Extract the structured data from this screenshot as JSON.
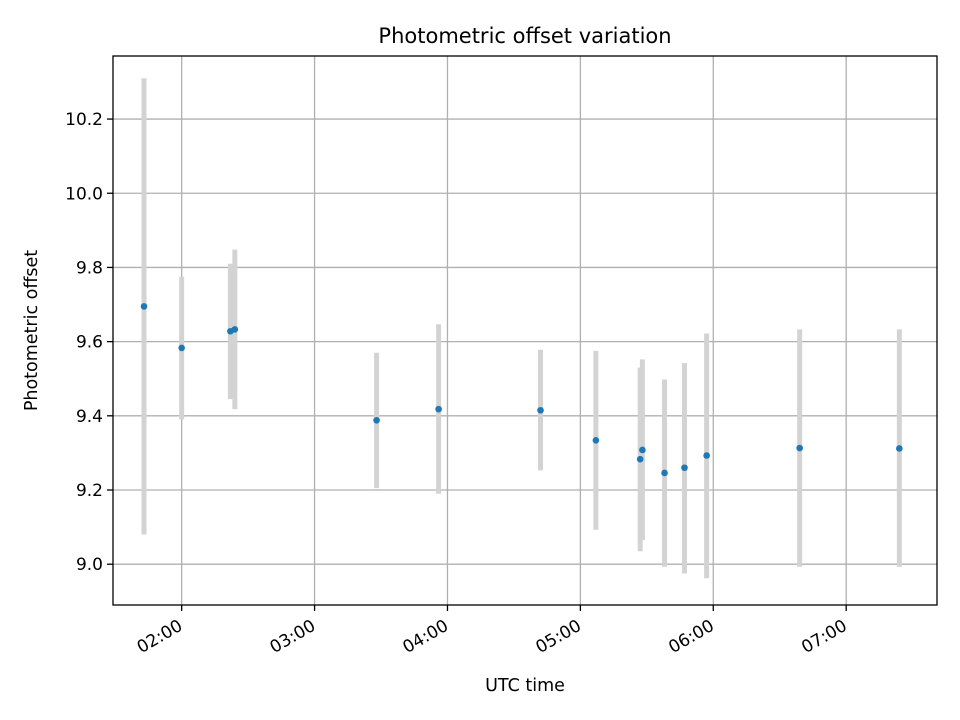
{
  "chart_data": {
    "type": "scatter",
    "title": "Photometric offset variation",
    "xlabel": "UTC time",
    "ylabel": "Photometric offset",
    "xlim": [
      "01:29",
      "07:41"
    ],
    "ylim": [
      8.89,
      10.37
    ],
    "grid": true,
    "x_ticks": [
      "02:00",
      "03:00",
      "04:00",
      "05:00",
      "06:00",
      "07:00"
    ],
    "y_ticks": [
      9.0,
      9.2,
      9.4,
      9.6,
      9.8,
      10.0,
      10.2
    ],
    "y_tick_labels": [
      "9.0",
      "9.2",
      "9.4",
      "9.6",
      "9.8",
      "10.0",
      "10.2"
    ],
    "series": [
      {
        "marker_color": "#1f77b4",
        "errorbar_color": "#d3d3d3",
        "points": [
          {
            "x": "01:43",
            "y": 9.695,
            "y_low": 9.08,
            "y_high": 10.31
          },
          {
            "x": "02:00",
            "y": 9.583,
            "y_low": 9.39,
            "y_high": 9.775
          },
          {
            "x": "02:22",
            "y": 9.628,
            "y_low": 9.445,
            "y_high": 9.81
          },
          {
            "x": "02:24",
            "y": 9.633,
            "y_low": 9.418,
            "y_high": 9.848
          },
          {
            "x": "03:28",
            "y": 9.388,
            "y_low": 9.205,
            "y_high": 9.57
          },
          {
            "x": "03:56",
            "y": 9.418,
            "y_low": 9.19,
            "y_high": 9.647
          },
          {
            "x": "04:42",
            "y": 9.415,
            "y_low": 9.253,
            "y_high": 9.578
          },
          {
            "x": "05:07",
            "y": 9.334,
            "y_low": 9.093,
            "y_high": 9.575
          },
          {
            "x": "05:27",
            "y": 9.283,
            "y_low": 9.035,
            "y_high": 9.53
          },
          {
            "x": "05:28",
            "y": 9.308,
            "y_low": 9.065,
            "y_high": 9.552
          },
          {
            "x": "05:38",
            "y": 9.246,
            "y_low": 8.993,
            "y_high": 9.498
          },
          {
            "x": "05:47",
            "y": 9.26,
            "y_low": 8.975,
            "y_high": 9.542
          },
          {
            "x": "05:57",
            "y": 9.293,
            "y_low": 8.962,
            "y_high": 9.622
          },
          {
            "x": "06:39",
            "y": 9.313,
            "y_low": 8.993,
            "y_high": 9.633
          },
          {
            "x": "07:24",
            "y": 9.312,
            "y_low": 8.993,
            "y_high": 9.633
          }
        ]
      }
    ]
  }
}
